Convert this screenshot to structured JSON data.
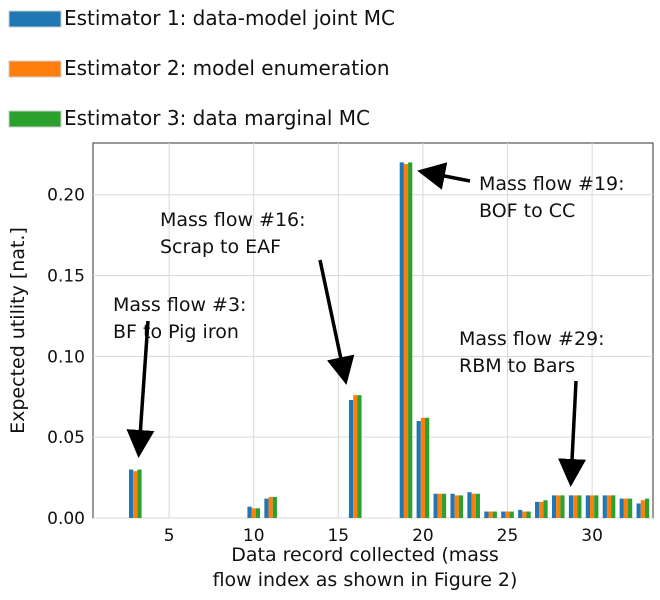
{
  "chart_data": {
    "type": "bar",
    "xlabel": "Data record collected (mass\nflow index as shown in Figure 2)",
    "ylabel": "Expected utility [nat.]",
    "xlim": [
      0.5,
      33.6
    ],
    "ylim": [
      0,
      0.232
    ],
    "xticks": [
      5,
      10,
      15,
      20,
      25,
      30
    ],
    "yticks": [
      0.0,
      0.05,
      0.1,
      0.15,
      0.2
    ],
    "ytick_labels": [
      "0.00",
      "0.05",
      "0.10",
      "0.15",
      "0.20"
    ],
    "grid": true,
    "legend_position": "top-left, outside above axes",
    "series": [
      {
        "name": "Estimator 1: data-model joint MC",
        "color": "#1f77b4",
        "points": [
          [
            3,
            0.03
          ],
          [
            10,
            0.007
          ],
          [
            11,
            0.012
          ],
          [
            16,
            0.073
          ],
          [
            19,
            0.22
          ],
          [
            20,
            0.06
          ],
          [
            21,
            0.015
          ],
          [
            22,
            0.015
          ],
          [
            23,
            0.016
          ],
          [
            24,
            0.004
          ],
          [
            25,
            0.004
          ],
          [
            26,
            0.005
          ],
          [
            27,
            0.01
          ],
          [
            28,
            0.014
          ],
          [
            29,
            0.014
          ],
          [
            30,
            0.014
          ],
          [
            31,
            0.014
          ],
          [
            32,
            0.012
          ],
          [
            33,
            0.009
          ]
        ]
      },
      {
        "name": "Estimator 2: model enumeration",
        "color": "#ff7f0e",
        "points": [
          [
            3,
            0.029
          ],
          [
            10,
            0.006
          ],
          [
            11,
            0.013
          ],
          [
            16,
            0.076
          ],
          [
            19,
            0.219
          ],
          [
            20,
            0.062
          ],
          [
            21,
            0.015
          ],
          [
            22,
            0.014
          ],
          [
            23,
            0.015
          ],
          [
            24,
            0.004
          ],
          [
            25,
            0.004
          ],
          [
            26,
            0.004
          ],
          [
            27,
            0.01
          ],
          [
            28,
            0.014
          ],
          [
            29,
            0.014
          ],
          [
            30,
            0.014
          ],
          [
            31,
            0.014
          ],
          [
            32,
            0.012
          ],
          [
            33,
            0.011
          ]
        ]
      },
      {
        "name": "Estimator 3: data marginal MC",
        "color": "#2ca02c",
        "points": [
          [
            3,
            0.03
          ],
          [
            10,
            0.006
          ],
          [
            11,
            0.013
          ],
          [
            16,
            0.076
          ],
          [
            19,
            0.22
          ],
          [
            20,
            0.062
          ],
          [
            21,
            0.015
          ],
          [
            22,
            0.014
          ],
          [
            23,
            0.015
          ],
          [
            24,
            0.004
          ],
          [
            25,
            0.004
          ],
          [
            26,
            0.004
          ],
          [
            27,
            0.011
          ],
          [
            28,
            0.014
          ],
          [
            29,
            0.014
          ],
          [
            30,
            0.014
          ],
          [
            31,
            0.014
          ],
          [
            32,
            0.012
          ],
          [
            33,
            0.012
          ]
        ]
      }
    ],
    "annotations": [
      {
        "lines": [
          "Mass flow #3:",
          "BF to Pig iron"
        ],
        "target": [
          3,
          0.03
        ]
      },
      {
        "lines": [
          "Mass flow #16:",
          "Scrap to EAF"
        ],
        "target": [
          16,
          0.076
        ]
      },
      {
        "lines": [
          "Mass flow #19:",
          "BOF to CC"
        ],
        "target": [
          19,
          0.22
        ]
      },
      {
        "lines": [
          "Mass flow #29:",
          "RBM to Bars"
        ],
        "target": [
          29,
          0.014
        ]
      }
    ]
  }
}
